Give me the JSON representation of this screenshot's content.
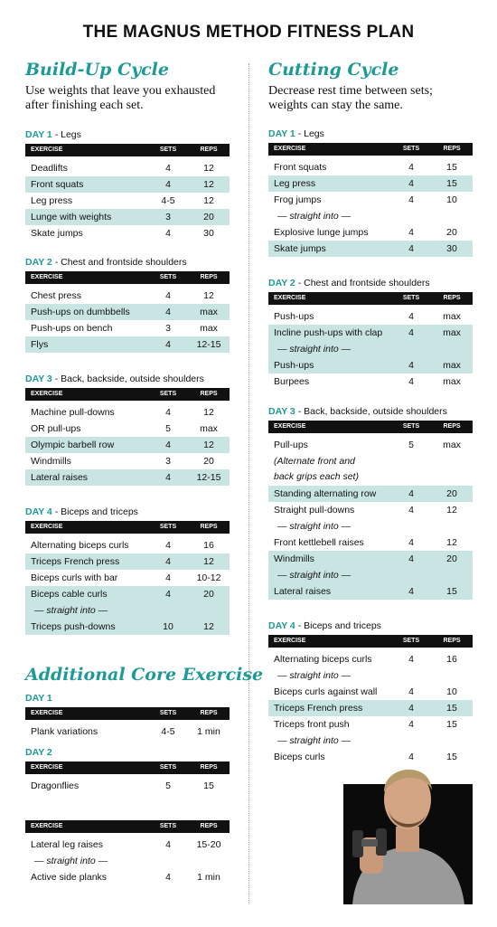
{
  "title": "THE MAGNUS METHOD FITNESS PLAN",
  "columns": [
    "EXERCISE",
    "SETS",
    "REPS"
  ],
  "left": {
    "heading": "Build-Up Cycle",
    "description": "Use weights that leave you exhausted after finishing each set.",
    "days": [
      {
        "label": "DAY 1",
        "title": "- Legs",
        "rows": [
          {
            "exercise": "Deadlifts",
            "sets": "4",
            "reps": "12",
            "shaded": false
          },
          {
            "exercise": "Front squats",
            "sets": "4",
            "reps": "12",
            "shaded": true
          },
          {
            "exercise": "Leg press",
            "sets": "4-5",
            "reps": "12",
            "shaded": false
          },
          {
            "exercise": "Lunge with weights",
            "sets": "3",
            "reps": "20",
            "shaded": true
          },
          {
            "exercise": "Skate jumps",
            "sets": "4",
            "reps": "30",
            "shaded": false
          }
        ]
      },
      {
        "label": "DAY 2",
        "title": "- Chest and frontside shoulders",
        "rows": [
          {
            "exercise": "Chest press",
            "sets": "4",
            "reps": "12",
            "shaded": false
          },
          {
            "exercise": "Push-ups on dumbbells",
            "sets": "4",
            "reps": "max",
            "shaded": true
          },
          {
            "exercise": "Push-ups on bench",
            "sets": "3",
            "reps": "max",
            "shaded": false
          },
          {
            "exercise": "Flys",
            "sets": "4",
            "reps": "12-15",
            "shaded": true
          }
        ]
      },
      {
        "label": "DAY 3",
        "title": "- Back, backside, outside shoulders",
        "rows": [
          {
            "exercise": "Machine pull-downs",
            "sets": "4",
            "reps": "12",
            "shaded": false
          },
          {
            "exercise": "OR pull-ups",
            "sets": "5",
            "reps": "max",
            "shaded": false
          },
          {
            "exercise": "Olympic barbell row",
            "sets": "4",
            "reps": "12",
            "shaded": true
          },
          {
            "exercise": "Windmills",
            "sets": "3",
            "reps": "20",
            "shaded": false
          },
          {
            "exercise": "Lateral raises",
            "sets": "4",
            "reps": "12-15",
            "shaded": true
          }
        ]
      },
      {
        "label": "DAY 4",
        "title": "- Biceps and triceps",
        "rows": [
          {
            "exercise": "Alternating biceps curls",
            "sets": "4",
            "reps": "16",
            "shaded": false
          },
          {
            "exercise": "Triceps French press",
            "sets": "4",
            "reps": "12",
            "shaded": true
          },
          {
            "exercise": "Biceps curls with bar",
            "sets": "4",
            "reps": "10-12",
            "shaded": false
          },
          {
            "exercise": "Biceps cable curls",
            "sets": "4",
            "reps": "20",
            "shaded": true
          },
          {
            "exercise": "— straight into —",
            "note": true,
            "shaded": true
          },
          {
            "exercise": "Triceps push-downs",
            "sets": "10",
            "reps": "12",
            "shaded": true
          }
        ]
      }
    ]
  },
  "core": {
    "heading": "Additional Core Exercise",
    "days": [
      {
        "label": "DAY 1",
        "rows": [
          {
            "exercise": "Plank variations",
            "sets": "4-5",
            "reps": "1 min",
            "shaded": false
          }
        ]
      },
      {
        "label": "DAY 2",
        "rows": [
          {
            "exercise": "Dragonflies",
            "sets": "5",
            "reps": "15",
            "shaded": false
          }
        ]
      },
      {
        "rows": [
          {
            "exercise": "Lateral leg raises",
            "sets": "4",
            "reps": "15-20",
            "shaded": false
          },
          {
            "exercise": "— straight into —",
            "note": true,
            "shaded": false
          },
          {
            "exercise": "Active side planks",
            "sets": "4",
            "reps": "1 min",
            "shaded": false
          }
        ]
      }
    ]
  },
  "right": {
    "heading": "Cutting Cycle",
    "description": "Decrease rest time between sets; weights can stay the same.",
    "days": [
      {
        "label": "DAY 1",
        "title": "- Legs",
        "rows": [
          {
            "exercise": "Front squats",
            "sets": "4",
            "reps": "15",
            "shaded": false
          },
          {
            "exercise": "Leg press",
            "sets": "4",
            "reps": "15",
            "shaded": true
          },
          {
            "exercise": "Frog jumps",
            "sets": "4",
            "reps": "10",
            "shaded": false
          },
          {
            "exercise": "— straight into —",
            "note": true,
            "shaded": false
          },
          {
            "exercise": "Explosive lunge jumps",
            "sets": "4",
            "reps": "20",
            "shaded": false
          },
          {
            "exercise": "Skate jumps",
            "sets": "4",
            "reps": "30",
            "shaded": true
          }
        ]
      },
      {
        "label": "DAY 2",
        "title": "- Chest and frontside shoulders",
        "rows": [
          {
            "exercise": "Push-ups",
            "sets": "4",
            "reps": "max",
            "shaded": false
          },
          {
            "exercise": "Incline push-ups with clap",
            "sets": "4",
            "reps": "max",
            "shaded": true
          },
          {
            "exercise": "— straight into —",
            "note": true,
            "shaded": true
          },
          {
            "exercise": "Push-ups",
            "sets": "4",
            "reps": "max",
            "shaded": true
          },
          {
            "exercise": "Burpees",
            "sets": "4",
            "reps": "max",
            "shaded": false
          }
        ]
      },
      {
        "label": "DAY 3",
        "title": "- Back, backside, outside shoulders",
        "rows": [
          {
            "exercise": "Pull-ups",
            "sets": "5",
            "reps": "max",
            "shaded": false
          },
          {
            "exercise": "(Alternate front and back grips each set)",
            "note": true,
            "wide": true,
            "shaded": false
          },
          {
            "exercise": "Standing alternating row",
            "sets": "4",
            "reps": "20",
            "shaded": true
          },
          {
            "exercise": "Straight pull-downs",
            "sets": "4",
            "reps": "12",
            "shaded": false
          },
          {
            "exercise": "— straight into —",
            "note": true,
            "shaded": false
          },
          {
            "exercise": "Front kettlebell raises",
            "sets": "4",
            "reps": "12",
            "shaded": false
          },
          {
            "exercise": "Windmills",
            "sets": "4",
            "reps": "20",
            "shaded": true
          },
          {
            "exercise": "— straight into —",
            "note": true,
            "shaded": true
          },
          {
            "exercise": "Lateral raises",
            "sets": "4",
            "reps": "15",
            "shaded": true
          }
        ]
      },
      {
        "label": "DAY 4",
        "title": "- Biceps and triceps",
        "rows": [
          {
            "exercise": "Alternating biceps curls",
            "sets": "4",
            "reps": "16",
            "shaded": false
          },
          {
            "exercise": "— straight into —",
            "note": true,
            "shaded": false
          },
          {
            "exercise": "Biceps curls against wall",
            "sets": "4",
            "reps": "10",
            "shaded": false
          },
          {
            "exercise": "Triceps French press",
            "sets": "4",
            "reps": "15",
            "shaded": true
          },
          {
            "exercise": "Triceps front push",
            "sets": "4",
            "reps": "15",
            "shaded": false
          },
          {
            "exercise": "— straight into —",
            "note": true,
            "shaded": false
          },
          {
            "exercise": "Biceps curls",
            "sets": "4",
            "reps": "15",
            "shaded": false
          }
        ]
      }
    ]
  }
}
